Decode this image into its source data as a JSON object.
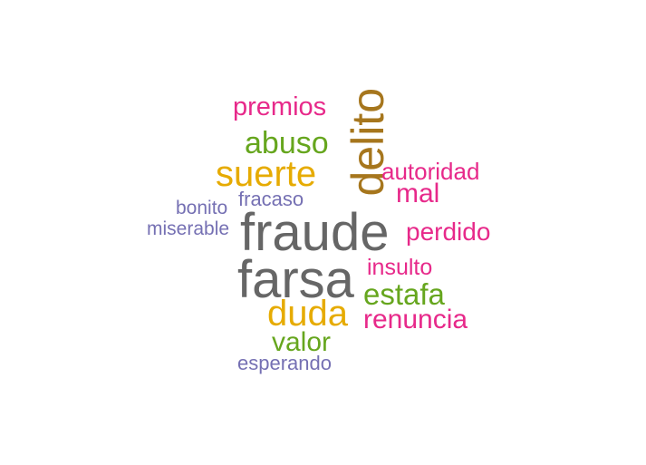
{
  "wordcloud": {
    "words": [
      {
        "id": "fraude",
        "text": "fraude",
        "color": "#666666",
        "rotated": false
      },
      {
        "id": "farsa",
        "text": "farsa",
        "color": "#666666",
        "rotated": false
      },
      {
        "id": "delito",
        "text": "delito",
        "color": "#A6761D",
        "rotated": true
      },
      {
        "id": "suerte",
        "text": "suerte",
        "color": "#E6AB02",
        "rotated": false
      },
      {
        "id": "duda",
        "text": "duda",
        "color": "#E6AB02",
        "rotated": false
      },
      {
        "id": "abuso",
        "text": "abuso",
        "color": "#66A61E",
        "rotated": false
      },
      {
        "id": "estafa",
        "text": "estafa",
        "color": "#66A61E",
        "rotated": false
      },
      {
        "id": "renuncia",
        "text": "renuncia",
        "color": "#E7298A",
        "rotated": false
      },
      {
        "id": "mal",
        "text": "mal",
        "color": "#E7298A",
        "rotated": false
      },
      {
        "id": "valor",
        "text": "valor",
        "color": "#66A61E",
        "rotated": false
      },
      {
        "id": "premios",
        "text": "premios",
        "color": "#E7298A",
        "rotated": false
      },
      {
        "id": "perdido",
        "text": "perdido",
        "color": "#E7298A",
        "rotated": false
      },
      {
        "id": "autoridad",
        "text": "autoridad",
        "color": "#E7298A",
        "rotated": false
      },
      {
        "id": "insulto",
        "text": "insulto",
        "color": "#E7298A",
        "rotated": false
      },
      {
        "id": "fracaso",
        "text": "fracaso",
        "color": "#7570B3",
        "rotated": false
      },
      {
        "id": "esperando",
        "text": "esperando",
        "color": "#7570B3",
        "rotated": false
      },
      {
        "id": "bonito",
        "text": "bonito",
        "color": "#7570B3",
        "rotated": false
      },
      {
        "id": "miserable",
        "text": "miserable",
        "color": "#7570B3",
        "rotated": false
      }
    ]
  }
}
